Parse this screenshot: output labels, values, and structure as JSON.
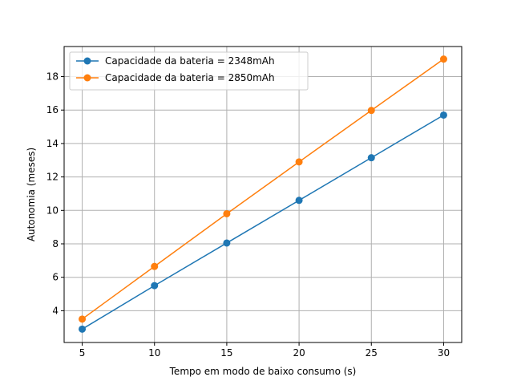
{
  "chart_data": {
    "type": "line",
    "title": "",
    "xlabel": "Tempo em modo de baixo consumo (s)",
    "ylabel": "Autonomia (meses)",
    "x": [
      5,
      10,
      15,
      20,
      25,
      30
    ],
    "xlim": [
      3.75,
      31.25
    ],
    "ylim": [
      2.1,
      19.8
    ],
    "xticks": [
      5,
      10,
      15,
      20,
      25,
      30
    ],
    "yticks": [
      4,
      6,
      8,
      10,
      12,
      14,
      16,
      18
    ],
    "grid": true,
    "legend_position": "top-left",
    "series": [
      {
        "name": "Capacidade da bateria = 2348mAh",
        "color": "#1f77b4",
        "marker": "circle",
        "values": [
          2.9,
          5.5,
          8.05,
          10.6,
          13.15,
          15.7
        ]
      },
      {
        "name": "Capacidade da bateria = 2850mAh",
        "color": "#ff7f0e",
        "marker": "circle",
        "values": [
          3.5,
          6.65,
          9.8,
          12.9,
          15.98,
          19.05
        ]
      }
    ]
  }
}
